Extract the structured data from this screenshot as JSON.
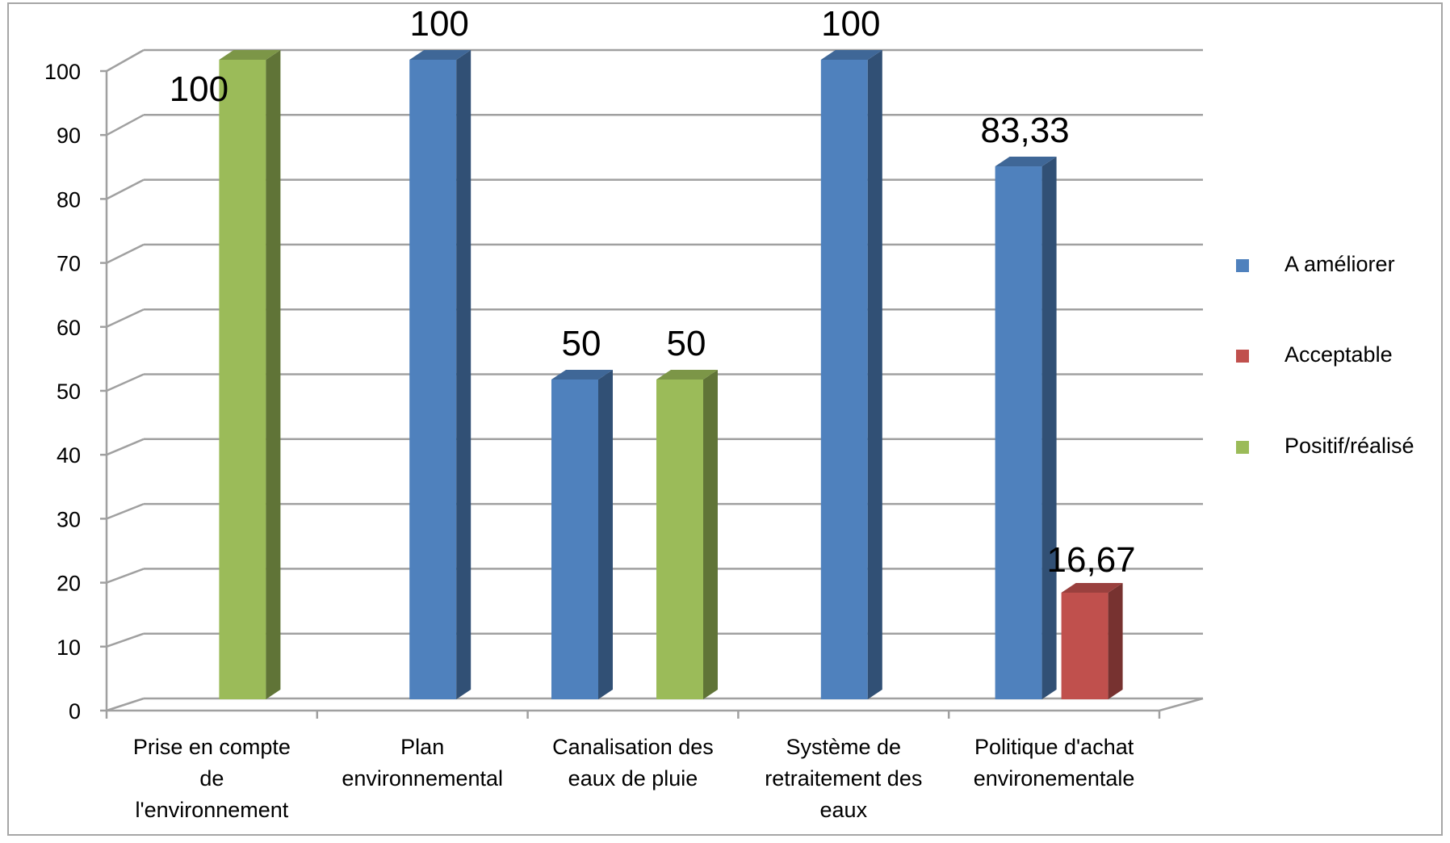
{
  "chart_data": {
    "type": "bar",
    "title": "",
    "xlabel": "",
    "ylabel": "",
    "ylim": [
      0,
      100
    ],
    "yticks": [
      0,
      10,
      20,
      30,
      40,
      50,
      60,
      70,
      80,
      90,
      100
    ],
    "grid": true,
    "legend_position": "right",
    "style": "3d-clustered-column",
    "categories": [
      [
        "Prise en compte",
        "de",
        "l'environnement"
      ],
      [
        "Plan",
        "environnemental"
      ],
      [
        "Canalisation des",
        "eaux de pluie"
      ],
      [
        "Système de",
        "retraitement des",
        "eaux"
      ],
      [
        "Politique d'achat",
        "environementale"
      ]
    ],
    "series": [
      {
        "name": "A améliorer",
        "color": "#4F81BD",
        "values": [
          null,
          100,
          50,
          100,
          83.33
        ],
        "labels": [
          "",
          "100",
          "50",
          "100",
          "83,33"
        ]
      },
      {
        "name": "Acceptable",
        "color": "#C0504D",
        "values": [
          null,
          null,
          null,
          null,
          16.67
        ],
        "labels": [
          "",
          "",
          "",
          "",
          "16,67"
        ]
      },
      {
        "name": "Positif/réalisé",
        "color": "#9BBB59",
        "values": [
          100,
          null,
          50,
          null,
          null
        ],
        "labels": [
          "100",
          "",
          "50",
          "",
          ""
        ]
      }
    ]
  }
}
